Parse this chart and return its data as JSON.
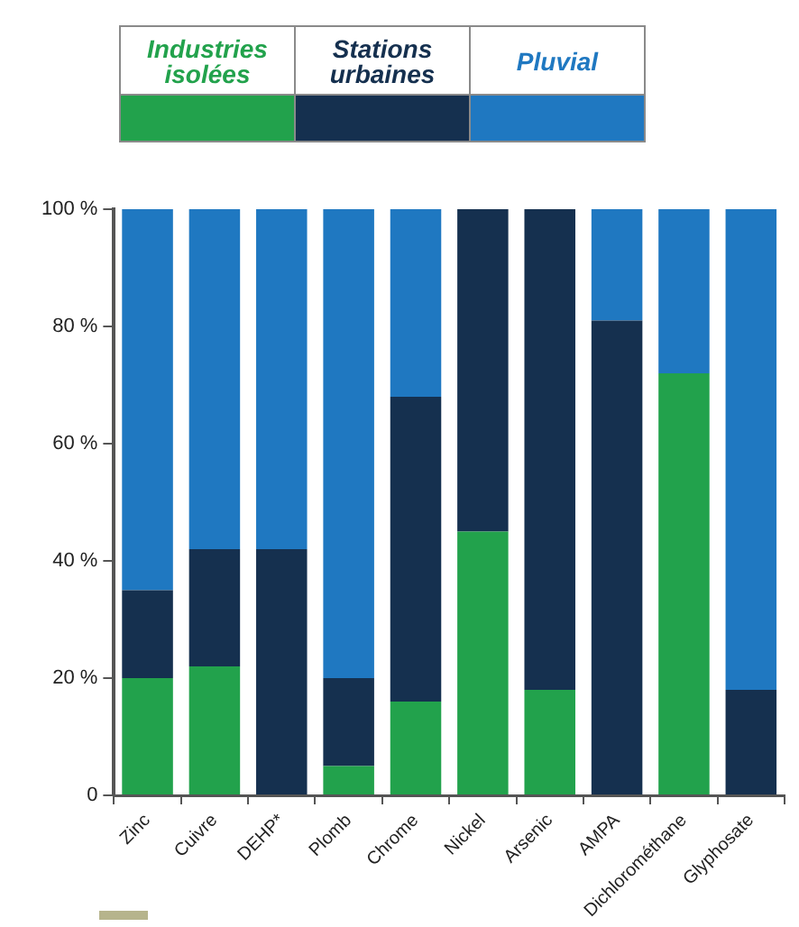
{
  "chart_data": {
    "type": "bar",
    "stacked": true,
    "categories": [
      "Zinc",
      "Cuivre",
      "DEHP*",
      "Plomb",
      "Chrome",
      "Nickel",
      "Arsenic",
      "AMPA",
      "Dichlorométhane",
      "Glyphosate"
    ],
    "series": [
      {
        "name": "Industries isolées",
        "color": "#22a24c",
        "values": [
          20,
          22,
          0,
          5,
          16,
          45,
          18,
          0,
          72,
          0
        ]
      },
      {
        "name": "Stations urbaines",
        "color": "#15304f",
        "values": [
          15,
          20,
          42,
          15,
          52,
          55,
          82,
          81,
          0,
          18
        ]
      },
      {
        "name": "Pluvial",
        "color": "#1f78c1",
        "values": [
          65,
          58,
          58,
          80,
          32,
          0,
          0,
          19,
          28,
          82
        ]
      }
    ],
    "ylim": [
      0,
      100
    ],
    "yticks": [
      {
        "value": 0,
        "label": "0"
      },
      {
        "value": 20,
        "label": "20 %"
      },
      {
        "value": 40,
        "label": "40 %"
      },
      {
        "value": 60,
        "label": "60 %"
      },
      {
        "value": 80,
        "label": "80 %"
      },
      {
        "value": 100,
        "label": "100 %"
      }
    ],
    "grid": false,
    "legend": "top"
  }
}
